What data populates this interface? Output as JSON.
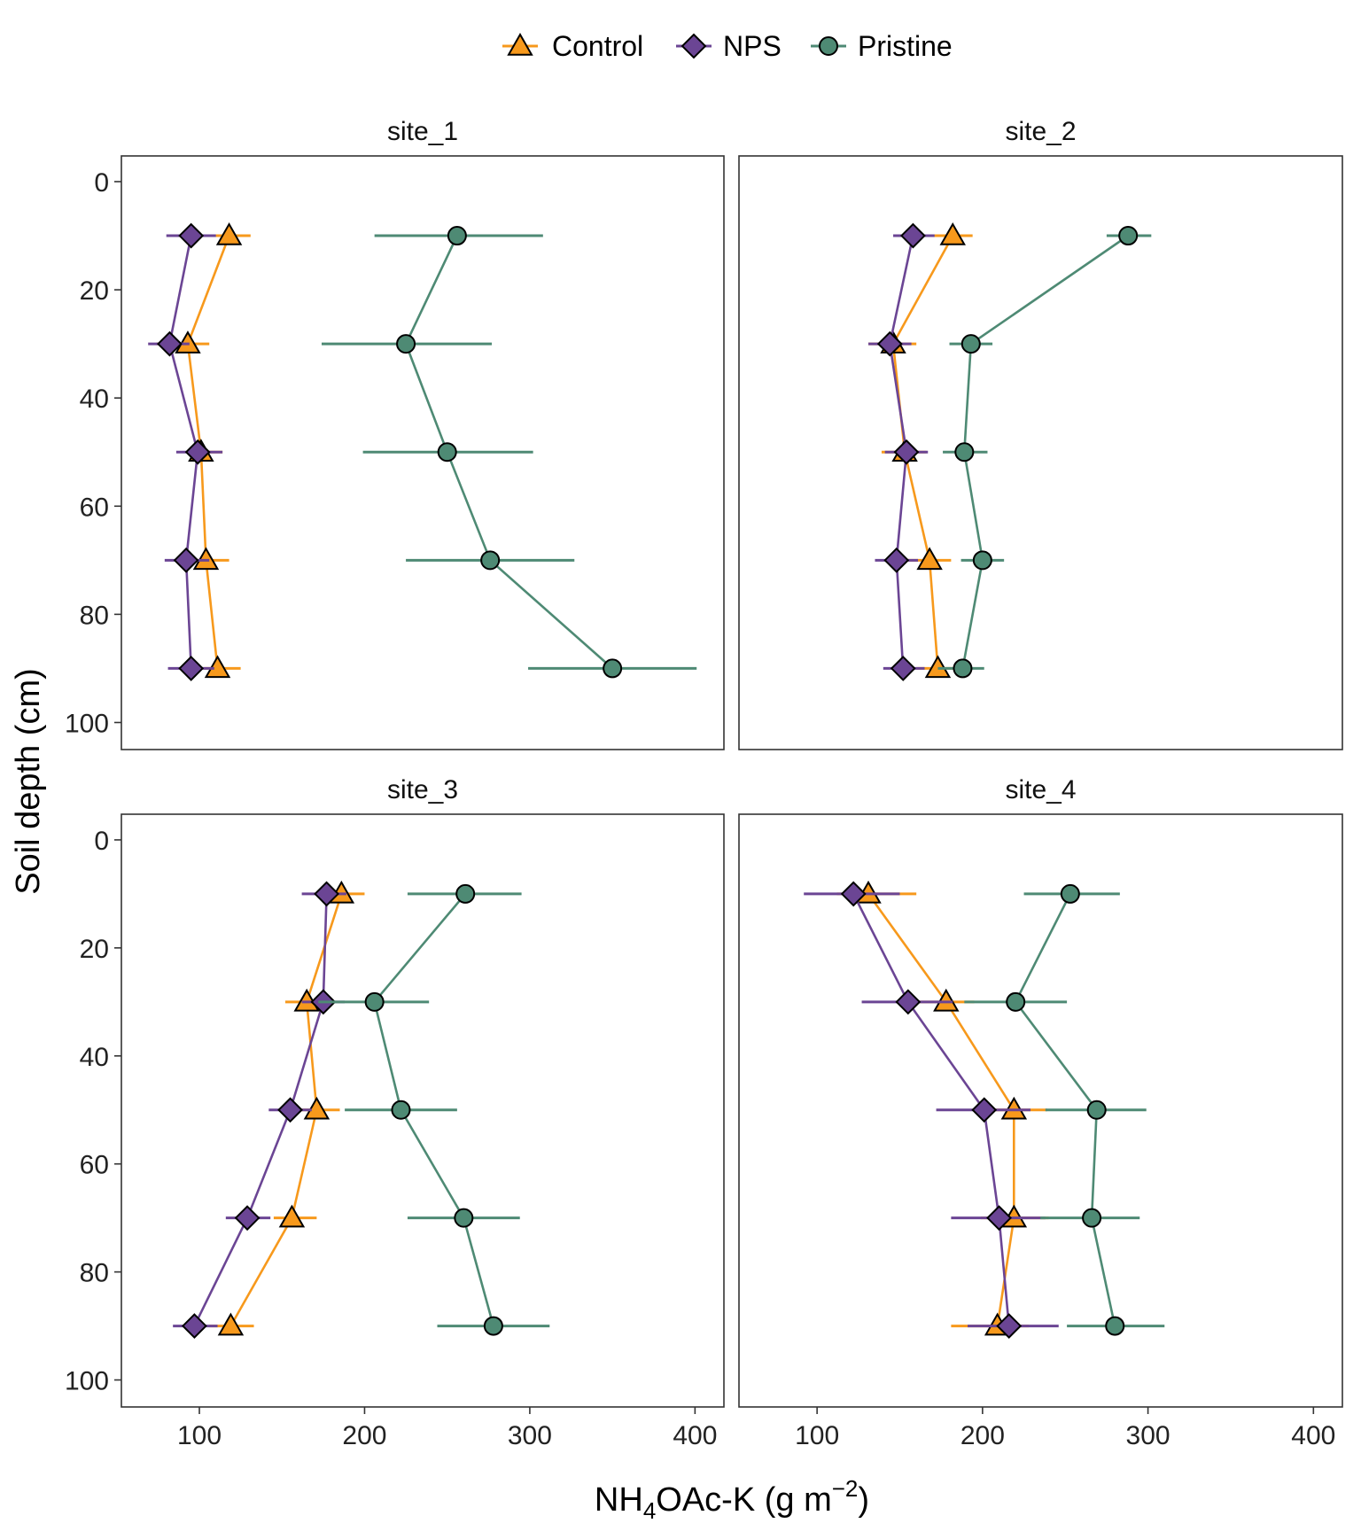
{
  "chart_data": {
    "type": "line",
    "orientation": "depth-profile (x = value, y = depth, reversed)",
    "xlabel_parts": {
      "pre": "NH",
      "sub": "4",
      "mid": "OAc-K (g m",
      "sup": "−2",
      "post": ")"
    },
    "xlabel": "NH4OAc-K (g m-2)",
    "ylabel": "Soil depth (cm)",
    "xlim": [
      52.8,
      417.5
    ],
    "ylim": [
      105,
      -4.75
    ],
    "x_ticks": [
      100,
      200,
      300,
      400
    ],
    "y_ticks": [
      0,
      20,
      40,
      60,
      80,
      100
    ],
    "grid": false,
    "legend": {
      "position": "top",
      "entries": [
        {
          "name": "Control",
          "color": "#F7991C",
          "marker": "triangle"
        },
        {
          "name": "NPS",
          "color": "#6B4594",
          "marker": "diamond"
        },
        {
          "name": "Pristine",
          "color": "#4E8A74",
          "marker": "circle"
        }
      ]
    },
    "depths": [
      10,
      30,
      50,
      70,
      90
    ],
    "facets": [
      {
        "title": "site_1",
        "series": [
          {
            "name": "Control",
            "values": [
              118,
              93,
              101,
              104,
              111
            ],
            "err_low": [
              109,
              74,
              94,
              97,
              103
            ],
            "err_high": [
              131,
              106,
              114,
              118,
              125
            ]
          },
          {
            "name": "NPS",
            "values": [
              95,
              82,
              99,
              92,
              95
            ],
            "err_low": [
              80,
              69,
              86,
              79,
              81
            ],
            "err_high": [
              110,
              94,
              114,
              106,
              109
            ]
          },
          {
            "name": "Pristine",
            "values": [
              256,
              225,
              250,
              276,
              350
            ],
            "err_low": [
              206,
              174,
              199,
              225,
              299
            ],
            "err_high": [
              308,
              277,
              302,
              327,
              401
            ]
          }
        ]
      },
      {
        "title": "site_2",
        "series": [
          {
            "name": "Control",
            "values": [
              182,
              146,
              153,
              168,
              173
            ],
            "err_low": [
              169,
              131,
              139,
              154,
              160
            ],
            "err_high": [
              194,
              160,
              166,
              181,
              185
            ]
          },
          {
            "name": "NPS",
            "values": [
              158,
              144,
              154,
              148,
              152
            ],
            "err_low": [
              146,
              131,
              141,
              135,
              140
            ],
            "err_high": [
              171,
              157,
              167,
              161,
              165
            ]
          },
          {
            "name": "Pristine",
            "values": [
              288,
              193,
              189,
              200,
              188
            ],
            "err_low": [
              275,
              180,
              176,
              187,
              173
            ],
            "err_high": [
              302,
              206,
              203,
              213,
              201
            ]
          }
        ]
      },
      {
        "title": "site_3",
        "series": [
          {
            "name": "Control",
            "values": [
              186,
              165,
              171,
              156,
              119
            ],
            "err_low": [
              175,
              152,
              159,
              145,
              106
            ],
            "err_high": [
              200,
              178,
              185,
              171,
              133
            ]
          },
          {
            "name": "NPS",
            "values": [
              177,
              175,
              155,
              129,
              97
            ],
            "err_low": [
              162,
              162,
              142,
              116,
              84
            ],
            "err_high": [
              189,
              188,
              168,
              143,
              111
            ]
          },
          {
            "name": "Pristine",
            "values": [
              261,
              206,
              222,
              260,
              278
            ],
            "err_low": [
              226,
              172,
              188,
              226,
              244
            ],
            "err_high": [
              295,
              239,
              256,
              294,
              312
            ]
          }
        ]
      },
      {
        "title": "site_4",
        "series": [
          {
            "name": "Control",
            "values": [
              131,
              178,
              219,
              219,
              209
            ],
            "err_low": [
              112,
              162,
              201,
              199,
              181
            ],
            "err_high": [
              160,
              195,
              239,
              240,
              228
            ]
          },
          {
            "name": "NPS",
            "values": [
              122,
              155,
              201,
              210,
              216
            ],
            "err_low": [
              92,
              127,
              172,
              181,
              191
            ],
            "err_high": [
              150,
              182,
              229,
              238,
              246
            ]
          },
          {
            "name": "Pristine",
            "values": [
              253,
              220,
              269,
              266,
              280
            ],
            "err_low": [
              225,
              189,
              238,
              235,
              251
            ],
            "err_high": [
              283,
              251,
              299,
              295,
              310
            ]
          }
        ]
      }
    ]
  }
}
